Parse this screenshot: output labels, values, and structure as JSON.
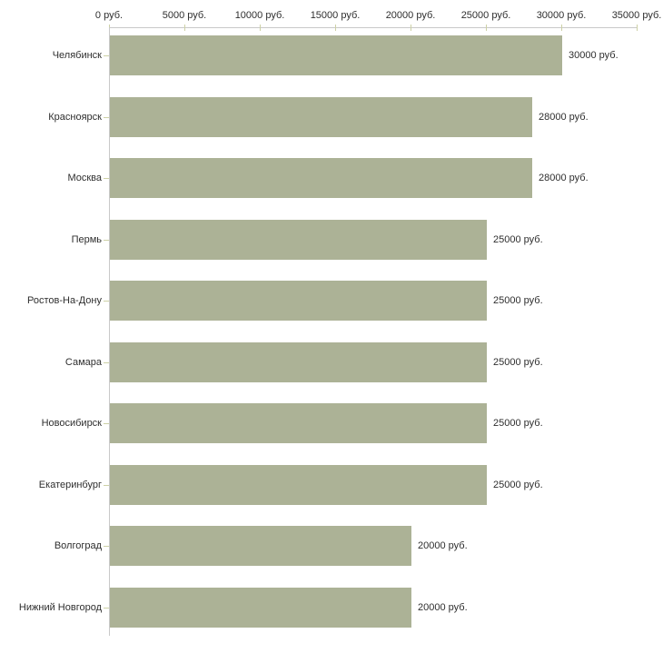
{
  "chart_data": {
    "type": "bar",
    "orientation": "horizontal",
    "title": "",
    "xlabel": "",
    "ylabel": "",
    "unit_suffix": " руб.",
    "categories": [
      "Челябинск",
      "Красноярск",
      "Москва",
      "Пермь",
      "Ростов-На-Дону",
      "Самара",
      "Новосибирск",
      "Екатеринбург",
      "Волгоград",
      "Нижний Новгород"
    ],
    "values": [
      30000,
      28000,
      28000,
      25000,
      25000,
      25000,
      25000,
      25000,
      20000,
      20000
    ],
    "value_labels": [
      "30000 руб.",
      "28000 руб.",
      "28000 руб.",
      "25000 руб.",
      "25000 руб.",
      "25000 руб.",
      "25000 руб.",
      "25000 руб.",
      "20000 руб.",
      "20000 руб."
    ],
    "x_ticks": [
      0,
      5000,
      10000,
      15000,
      20000,
      25000,
      30000,
      35000
    ],
    "x_tick_labels": [
      "0 руб.",
      "5000 руб.",
      "10000 руб.",
      "15000 руб.",
      "20000 руб.",
      "25000 руб.",
      "30000 руб.",
      "35000 руб."
    ],
    "xlim": [
      0,
      35000
    ],
    "grid": false,
    "legend": false,
    "colors": {
      "bar": "#acb296",
      "axis_line": "#c9c9c9",
      "tick_mark": "#cdd1a6",
      "text": "#2e2e2e",
      "background": "#ffffff"
    }
  }
}
